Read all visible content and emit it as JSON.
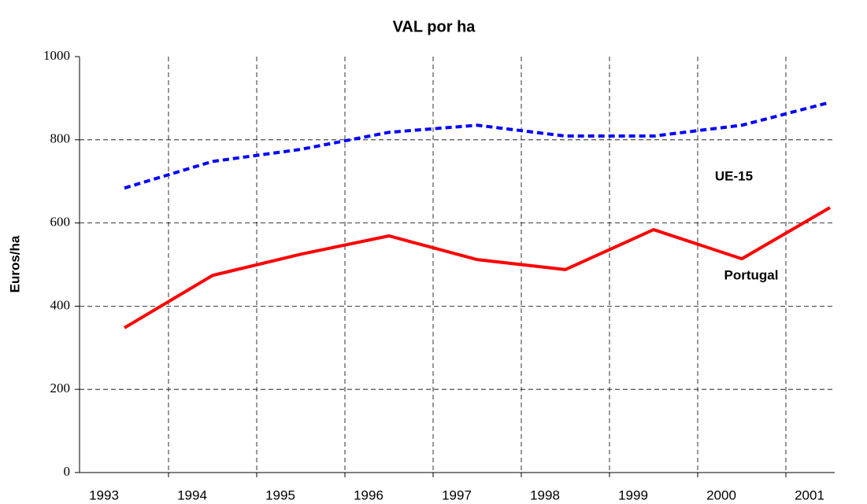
{
  "chart_data": {
    "type": "line",
    "title": "VAL por ha",
    "y_label": "Euros/ha",
    "categories": [
      "1993",
      "1994",
      "1995",
      "1996",
      "1997",
      "1998",
      "1999",
      "2000",
      "2001"
    ],
    "series": [
      {
        "name": "UE-15",
        "color": "#0000ff",
        "dash": true,
        "values": [
          684,
          748,
          777,
          818,
          835,
          809,
          809,
          835,
          890
        ]
      },
      {
        "name": "Portugal",
        "color": "#ff0000",
        "dash": false,
        "values": [
          348,
          474,
          525,
          569,
          512,
          488,
          584,
          514,
          637
        ]
      }
    ],
    "ylim": [
      0,
      1000
    ],
    "yticks": [
      0,
      200,
      400,
      600,
      800,
      1000
    ],
    "grid": true
  }
}
